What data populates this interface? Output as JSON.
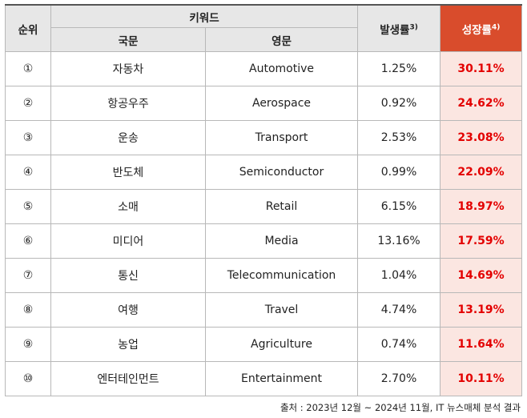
{
  "header": {
    "rank": "순위",
    "keyword": "키워드",
    "korean": "국문",
    "english": "영문",
    "occurrence": "발생률",
    "occurrence_note": "3)",
    "growth": "성장률",
    "growth_note": "4)"
  },
  "rows": [
    {
      "rank": "①",
      "ko": "자동차",
      "en": "Automotive",
      "occurrence": "1.25%",
      "growth": "30.11%"
    },
    {
      "rank": "②",
      "ko": "항공우주",
      "en": "Aerospace",
      "occurrence": "0.92%",
      "growth": "24.62%"
    },
    {
      "rank": "③",
      "ko": "운송",
      "en": "Transport",
      "occurrence": "2.53%",
      "growth": "23.08%"
    },
    {
      "rank": "④",
      "ko": "반도체",
      "en": "Semiconductor",
      "occurrence": "0.99%",
      "growth": "22.09%"
    },
    {
      "rank": "⑤",
      "ko": "소매",
      "en": "Retail",
      "occurrence": "6.15%",
      "growth": "18.97%"
    },
    {
      "rank": "⑥",
      "ko": "미디어",
      "en": "Media",
      "occurrence": "13.16%",
      "growth": "17.59%"
    },
    {
      "rank": "⑦",
      "ko": "통신",
      "en": "Telecommunication",
      "occurrence": "1.04%",
      "growth": "14.69%"
    },
    {
      "rank": "⑧",
      "ko": "여행",
      "en": "Travel",
      "occurrence": "4.74%",
      "growth": "13.19%"
    },
    {
      "rank": "⑨",
      "ko": "농업",
      "en": "Agriculture",
      "occurrence": "0.74%",
      "growth": "11.64%"
    },
    {
      "rank": "⑩",
      "ko": "엔터테인먼트",
      "en": "Entertainment",
      "occurrence": "2.70%",
      "growth": "10.11%"
    }
  ],
  "source": "출처 : 2023년 12월 ~ 2024년 11월, IT 뉴스매체 분석 결과",
  "colors": {
    "header_bg": "#e7e7e7",
    "growth_header_bg": "#d94c2c",
    "growth_cell_bg": "#fbe6e1",
    "growth_text": "#e30000"
  }
}
